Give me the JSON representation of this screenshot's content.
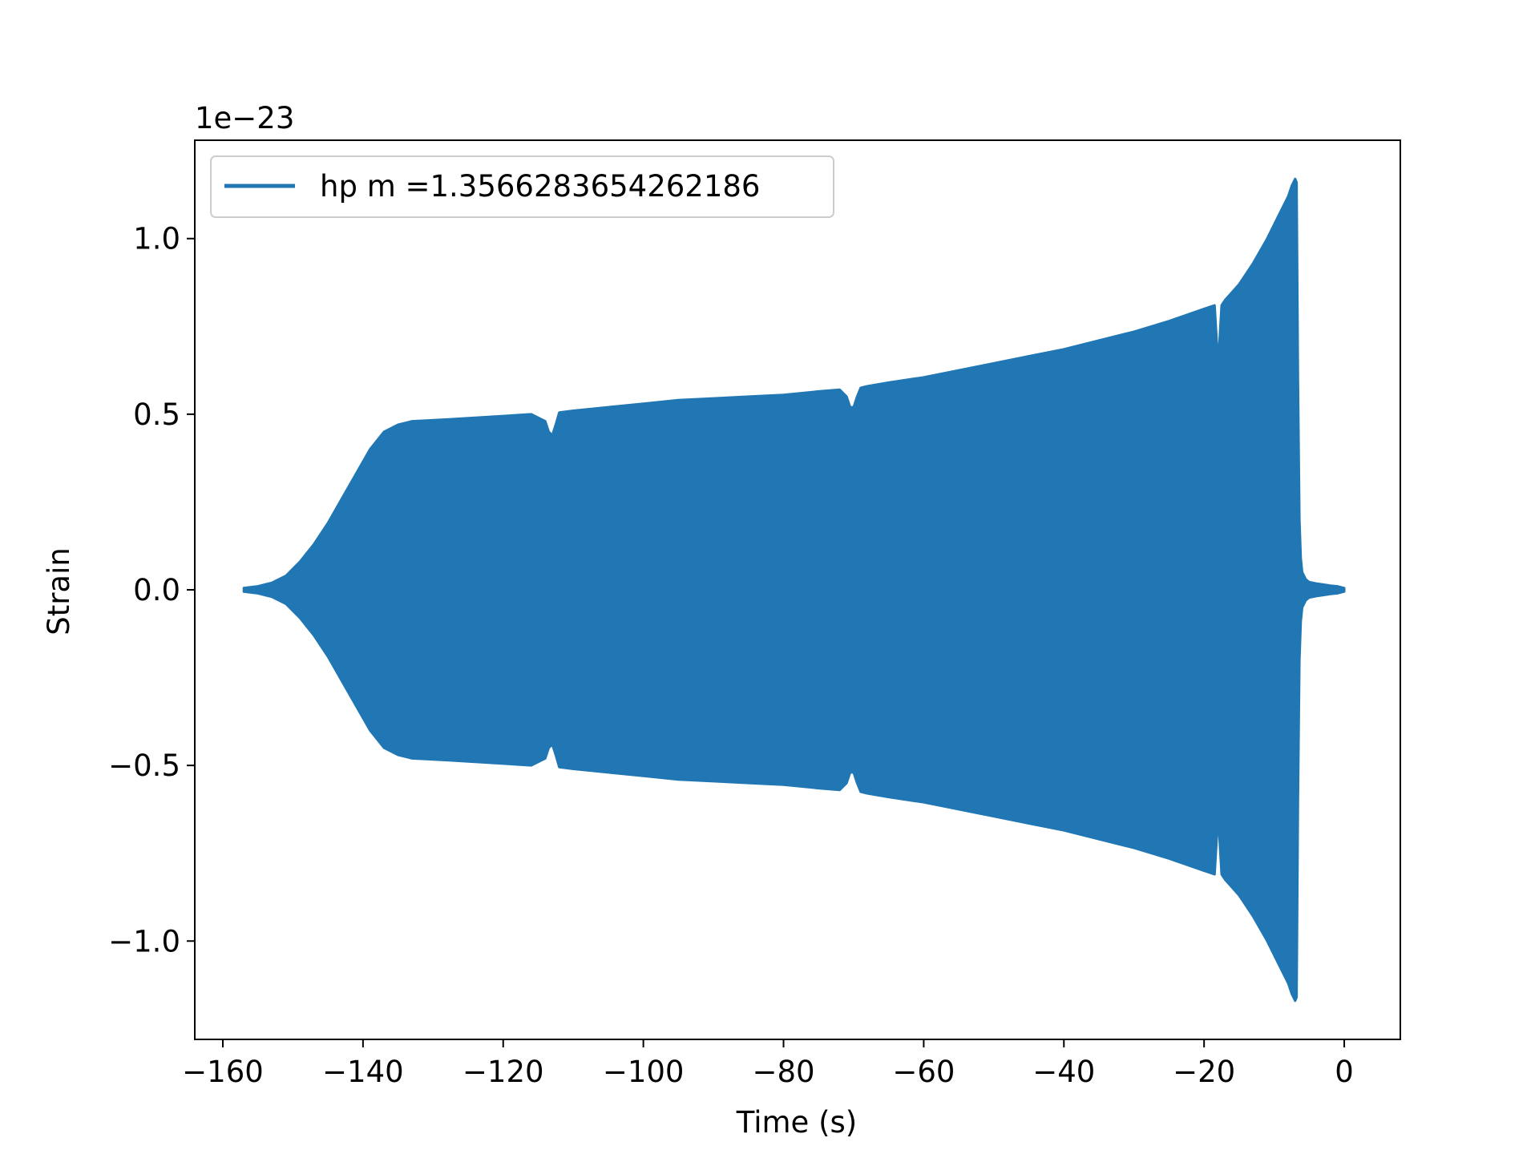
{
  "chart_data": {
    "type": "area",
    "title": "",
    "xlabel": "Time (s)",
    "ylabel": "Strain",
    "y_offset_label": "1e−23",
    "y_scale_factor": 1e-23,
    "xlim": [
      -164,
      8
    ],
    "ylim": [
      -1.28,
      1.28
    ],
    "x_ticks": [
      -160,
      -140,
      -120,
      -100,
      -80,
      -60,
      -40,
      -20,
      0
    ],
    "x_tick_labels": [
      "−160",
      "−140",
      "−120",
      "−100",
      "−80",
      "−60",
      "−40",
      "−20",
      "0"
    ],
    "y_ticks": [
      -1.0,
      -0.5,
      0.0,
      0.5,
      1.0
    ],
    "y_tick_labels": [
      "−1.0",
      "−0.5",
      "0.0",
      "0.5",
      "1.0"
    ],
    "grid": false,
    "legend_position": "top-left",
    "color": "#2077b4",
    "series": [
      {
        "name": "hp m =1.3566283654262186",
        "envelope_time": [
          -157,
          -155,
          -153,
          -151,
          -149,
          -147,
          -145,
          -143,
          -141,
          -139,
          -137,
          -135,
          -133,
          -131,
          -128,
          -124,
          -120,
          -116,
          -114,
          -113.5,
          -113,
          -112.5,
          -112,
          -110,
          -105,
          -100,
          -95,
          -90,
          -85,
          -80,
          -75,
          -72,
          -71,
          -70.5,
          -70,
          -69.5,
          -69,
          -68,
          -65,
          -60,
          -55,
          -50,
          -45,
          -40,
          -35,
          -30,
          -25,
          -20,
          -18.5,
          -18,
          -17.5,
          -17,
          -15,
          -13,
          -11,
          -10,
          -9,
          -8,
          -7.5,
          -7,
          -6.8,
          -6.6,
          -6.4,
          -6.2,
          -6,
          -5.5,
          -5,
          -4,
          -3,
          -2,
          -1,
          0
        ],
        "envelope_amplitude": [
          0.005,
          0.01,
          0.02,
          0.04,
          0.08,
          0.13,
          0.19,
          0.26,
          0.33,
          0.4,
          0.45,
          0.47,
          0.48,
          0.482,
          0.485,
          0.49,
          0.495,
          0.5,
          0.48,
          0.45,
          0.44,
          0.47,
          0.505,
          0.51,
          0.52,
          0.53,
          0.54,
          0.545,
          0.55,
          0.555,
          0.565,
          0.57,
          0.55,
          0.52,
          0.52,
          0.55,
          0.575,
          0.58,
          0.59,
          0.605,
          0.625,
          0.645,
          0.665,
          0.685,
          0.71,
          0.735,
          0.765,
          0.8,
          0.81,
          0.64,
          0.81,
          0.825,
          0.87,
          0.93,
          1.0,
          1.04,
          1.08,
          1.12,
          1.15,
          1.17,
          1.16,
          0.6,
          0.2,
          0.09,
          0.05,
          0.03,
          0.022,
          0.018,
          0.015,
          0.012,
          0.01,
          0.005
        ]
      }
    ]
  }
}
